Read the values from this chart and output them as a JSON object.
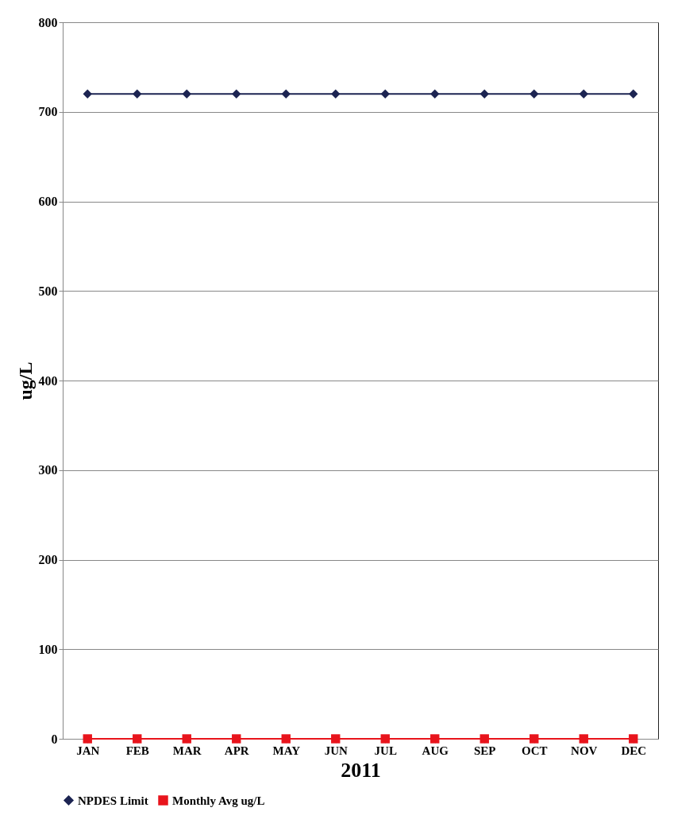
{
  "chart_data": {
    "type": "line",
    "xlabel": "2011",
    "ylabel": "ug/L",
    "categories": [
      "JAN",
      "FEB",
      "MAR",
      "APR",
      "MAY",
      "JUN",
      "JUL",
      "AUG",
      "SEP",
      "OCT",
      "NOV",
      "DEC"
    ],
    "series": [
      {
        "name": "NPDES Limit",
        "color": "#1c2452",
        "marker": "diamond",
        "values": [
          720,
          720,
          720,
          720,
          720,
          720,
          720,
          720,
          720,
          720,
          720,
          720
        ]
      },
      {
        "name": "Monthly  Avg ug/L",
        "color": "#e8141c",
        "marker": "square",
        "values": [
          0,
          0,
          0,
          0,
          0,
          0,
          0,
          0,
          0,
          0,
          0,
          0
        ]
      }
    ],
    "ylim": [
      0,
      800
    ],
    "yticks": [
      0,
      100,
      200,
      300,
      400,
      500,
      600,
      700,
      800
    ],
    "grid": "y",
    "legend": "bottom",
    "line_style": "solid"
  }
}
